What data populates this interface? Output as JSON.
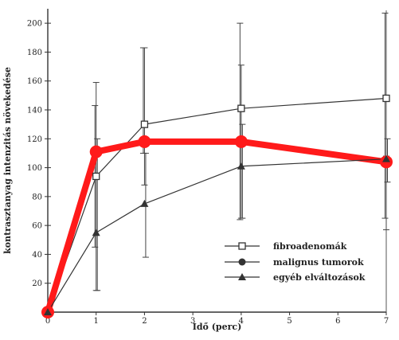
{
  "chart_data": {
    "type": "line",
    "xlabel": "Idő (perc)",
    "ylabel": "kontrasztanyag intenzitás növekedése",
    "x_ticks": [
      0,
      1,
      2,
      3,
      4,
      5,
      6,
      7
    ],
    "y_ticks": [
      20,
      40,
      60,
      80,
      100,
      120,
      140,
      160,
      180,
      200
    ],
    "xlim": [
      0,
      7
    ],
    "ylim": [
      0,
      210
    ],
    "grid": false,
    "legend_position": "bottom-right",
    "series": [
      {
        "name": "fibroadenomák",
        "marker": "open-square",
        "color": "#333333",
        "x": [
          0,
          1,
          2,
          4,
          7
        ],
        "y": [
          0,
          94,
          130,
          141,
          148
        ],
        "error_low": [
          0,
          45,
          110,
          64,
          65
        ],
        "error_high": [
          0,
          143,
          183,
          200,
          207
        ]
      },
      {
        "name": "malignus tumorok",
        "marker": "filled-circle",
        "color": "#ff1a1a",
        "x": [
          0,
          1,
          2,
          4,
          7
        ],
        "y": [
          0,
          111,
          118,
          118,
          104
        ],
        "error_low": [
          0,
          15,
          88,
          65,
          57
        ],
        "error_high": [
          0,
          159,
          183,
          171,
          108
        ]
      },
      {
        "name": "egyéb elváltozások",
        "marker": "filled-triangle",
        "color": "#333333",
        "x": [
          0,
          1,
          2,
          4,
          7
        ],
        "y": [
          0,
          55,
          75,
          101,
          106
        ],
        "error_low": [
          0,
          15,
          38,
          65,
          90
        ],
        "error_high": [
          0,
          120,
          110,
          130,
          120
        ]
      }
    ]
  }
}
